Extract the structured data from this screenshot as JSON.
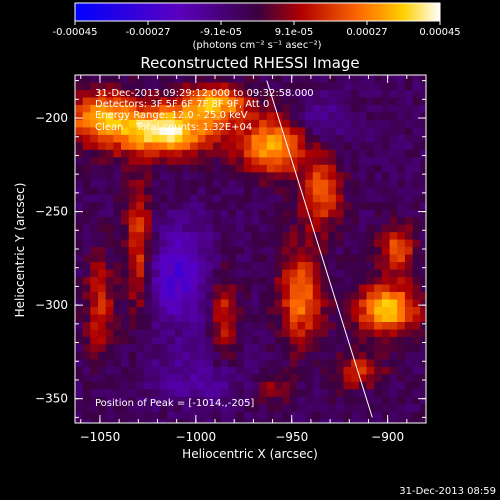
{
  "colorbar": {
    "ticks": [
      "-0.00045",
      "-0.00027",
      "-9.1e-05",
      "9.1e-05",
      "0.00027",
      "0.00045"
    ],
    "unit_label": "(photons cm⁻² s⁻¹ asec⁻²)",
    "range": [
      -0.00045,
      0.00045
    ]
  },
  "footer": {
    "timestamp": "31-Dec-2013 08:59"
  },
  "chart_data": {
    "type": "heatmap",
    "title": "Reconstructed RHESSI Image",
    "xlabel": "Heliocentric X (arcsec)",
    "ylabel": "Heliocentric Y (arcsec)",
    "xlim": [
      -1063,
      -880
    ],
    "ylim": [
      -363,
      -177
    ],
    "xticks": [
      -1050,
      -1000,
      -950,
      -900
    ],
    "xtick_labels": [
      "−1050",
      "−1000",
      "−950",
      "−900"
    ],
    "yticks": [
      -200,
      -250,
      -300,
      -350
    ],
    "ytick_labels": [
      "−200",
      "−250",
      "−300",
      "−350"
    ],
    "annotations": [
      "31-Dec-2013 09:29:12.000 to 09:32:58.000",
      "Detectors: 3F 5F 6F 7F 8F 9F, Att 0",
      "Energy Range: 12.0 - 25.0 keV",
      "Clean    Total counts: 1.32E+04"
    ],
    "peak_label": "Position of Peak = [-1014.,-205]",
    "peak": [
      -1014,
      -205
    ],
    "limb_line": [
      [
        -963,
        -180
      ],
      [
        -908,
        -360
      ]
    ],
    "regions": [
      {
        "x": -1015,
        "y": -207,
        "rx": 28,
        "ry": 14,
        "value": 0.00045
      },
      {
        "x": -1050,
        "y": -200,
        "rx": 22,
        "ry": 16,
        "value": 0.00032
      },
      {
        "x": -990,
        "y": -192,
        "rx": 20,
        "ry": 10,
        "value": 0.00036
      },
      {
        "x": -960,
        "y": -215,
        "rx": 18,
        "ry": 16,
        "value": 0.00038
      },
      {
        "x": -935,
        "y": -240,
        "rx": 12,
        "ry": 20,
        "value": 0.00026
      },
      {
        "x": -1030,
        "y": -270,
        "rx": 8,
        "ry": 40,
        "value": 0.00025
      },
      {
        "x": -1050,
        "y": -300,
        "rx": 8,
        "ry": 30,
        "value": 0.0002
      },
      {
        "x": -985,
        "y": -305,
        "rx": 8,
        "ry": 25,
        "value": 0.0002
      },
      {
        "x": -945,
        "y": -295,
        "rx": 12,
        "ry": 28,
        "value": 0.0003
      },
      {
        "x": -900,
        "y": -302,
        "rx": 18,
        "ry": 14,
        "value": 0.0004
      },
      {
        "x": -895,
        "y": -270,
        "rx": 10,
        "ry": 14,
        "value": 0.00026
      },
      {
        "x": -915,
        "y": -335,
        "rx": 14,
        "ry": 10,
        "value": 0.0002
      },
      {
        "x": -960,
        "y": -345,
        "rx": 10,
        "ry": 10,
        "value": 0.00012
      },
      {
        "x": -1010,
        "y": -285,
        "rx": 20,
        "ry": 30,
        "value": -0.0002
      },
      {
        "x": -935,
        "y": -200,
        "rx": 12,
        "ry": 12,
        "value": -0.00012
      },
      {
        "x": -1000,
        "y": -340,
        "rx": 30,
        "ry": 15,
        "value": -0.0001
      }
    ]
  }
}
